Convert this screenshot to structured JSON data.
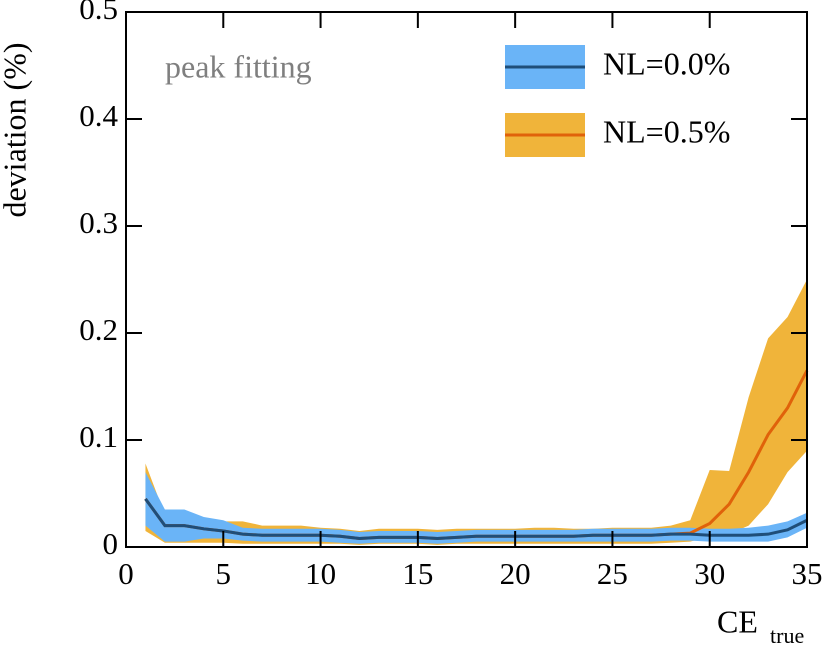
{
  "chart_data": {
    "type": "line",
    "x_label": "CE",
    "x_label_subscript": "true",
    "y_label": "deviation (%)",
    "annotation": "peak fitting",
    "x": [
      1,
      2,
      3,
      4,
      5,
      6,
      7,
      8,
      9,
      10,
      11,
      12,
      13,
      14,
      15,
      16,
      17,
      18,
      19,
      20,
      21,
      22,
      23,
      24,
      25,
      26,
      27,
      28,
      29,
      30,
      31,
      32,
      33,
      34,
      35
    ],
    "series": [
      {
        "name": "NL=0.5%",
        "color": "#e0620a",
        "band_color": "#f0b43a",
        "values": [
          0.045,
          0.02,
          0.02,
          0.017,
          0.015,
          0.012,
          0.011,
          0.011,
          0.011,
          0.011,
          0.01,
          0.008,
          0.009,
          0.009,
          0.009,
          0.008,
          0.009,
          0.01,
          0.01,
          0.01,
          0.01,
          0.01,
          0.01,
          0.011,
          0.011,
          0.011,
          0.011,
          0.012,
          0.013,
          0.022,
          0.04,
          0.07,
          0.105,
          0.13,
          0.165
        ],
        "lower": [
          0.015,
          0.004,
          0.004,
          0.004,
          0.004,
          0.003,
          0.003,
          0.003,
          0.003,
          0.003,
          0.003,
          0.002,
          0.003,
          0.003,
          0.003,
          0.002,
          0.003,
          0.003,
          0.003,
          0.003,
          0.003,
          0.003,
          0.003,
          0.003,
          0.003,
          0.003,
          0.003,
          0.004,
          0.005,
          0.01,
          0.012,
          0.02,
          0.04,
          0.07,
          0.09
        ],
        "upper": [
          0.078,
          0.03,
          0.03,
          0.025,
          0.024,
          0.024,
          0.02,
          0.02,
          0.02,
          0.018,
          0.017,
          0.015,
          0.017,
          0.017,
          0.017,
          0.016,
          0.017,
          0.017,
          0.017,
          0.017,
          0.018,
          0.018,
          0.017,
          0.017,
          0.018,
          0.018,
          0.018,
          0.02,
          0.025,
          0.072,
          0.071,
          0.14,
          0.195,
          0.215,
          0.25
        ]
      },
      {
        "name": "NL=0.0%",
        "color": "#1f4e79",
        "band_color": "#6ab4f7",
        "values": [
          0.045,
          0.02,
          0.02,
          0.017,
          0.015,
          0.012,
          0.011,
          0.011,
          0.011,
          0.011,
          0.01,
          0.008,
          0.009,
          0.009,
          0.009,
          0.008,
          0.009,
          0.01,
          0.01,
          0.01,
          0.01,
          0.01,
          0.01,
          0.011,
          0.011,
          0.011,
          0.011,
          0.012,
          0.012,
          0.011,
          0.011,
          0.011,
          0.012,
          0.016,
          0.025
        ],
        "lower": [
          0.02,
          0.005,
          0.005,
          0.008,
          0.008,
          0.006,
          0.005,
          0.005,
          0.005,
          0.005,
          0.004,
          0.003,
          0.004,
          0.004,
          0.004,
          0.003,
          0.004,
          0.005,
          0.005,
          0.005,
          0.005,
          0.005,
          0.005,
          0.005,
          0.005,
          0.005,
          0.005,
          0.006,
          0.006,
          0.005,
          0.005,
          0.005,
          0.005,
          0.009,
          0.018
        ],
        "upper": [
          0.07,
          0.035,
          0.035,
          0.028,
          0.025,
          0.018,
          0.017,
          0.017,
          0.017,
          0.017,
          0.016,
          0.014,
          0.015,
          0.015,
          0.015,
          0.014,
          0.015,
          0.016,
          0.016,
          0.016,
          0.016,
          0.016,
          0.016,
          0.017,
          0.017,
          0.017,
          0.017,
          0.018,
          0.018,
          0.017,
          0.017,
          0.018,
          0.02,
          0.024,
          0.032
        ]
      }
    ],
    "xlim": [
      0,
      35
    ],
    "xticks": [
      0,
      5,
      10,
      15,
      20,
      25,
      30,
      35
    ],
    "ylim": [
      0,
      0.5
    ],
    "yticks": [
      0,
      0.1,
      0.2,
      0.3,
      0.4,
      0.5
    ],
    "legend": "upper right",
    "grid": false
  }
}
